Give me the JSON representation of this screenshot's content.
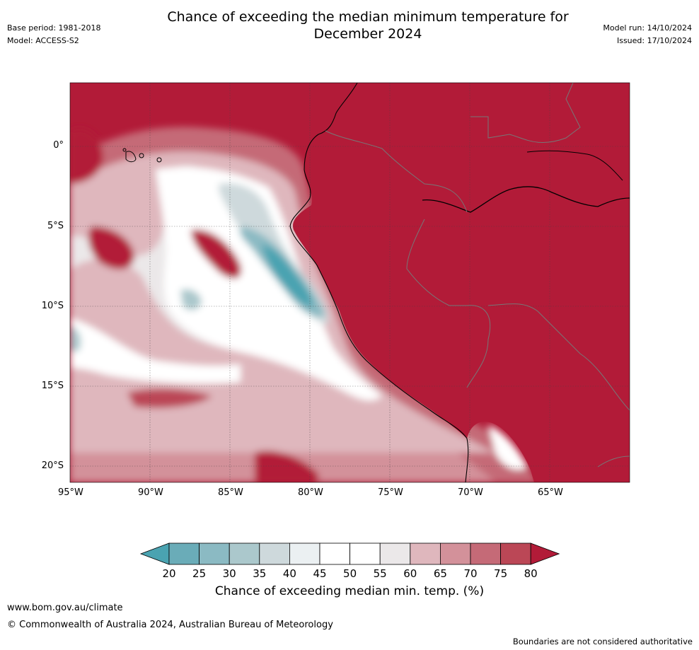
{
  "header": {
    "title_line1": "Chance of exceeding the median minimum temperature for",
    "title_line2": "December 2024",
    "base_period": "Base period: 1981-2018",
    "model": "Model: ACCESS-S2",
    "model_run": "Model run: 14/10/2024",
    "issued": "Issued: 17/10/2024"
  },
  "map": {
    "lon_ticks": [
      "95°W",
      "90°W",
      "85°W",
      "80°W",
      "75°W",
      "70°W",
      "65°W"
    ],
    "lat_ticks": [
      "0°",
      "5°S",
      "10°S",
      "15°S",
      "20°S"
    ]
  },
  "colorbar": {
    "label": "Chance of exceeding median min. temp. (%)",
    "ticks": [
      "20",
      "25",
      "30",
      "35",
      "40",
      "45",
      "50",
      "55",
      "60",
      "65",
      "70",
      "75",
      "80"
    ],
    "colors": [
      "#4aa3b1",
      "#6aacb8",
      "#8bbac3",
      "#abc8cc",
      "#ced9dc",
      "#ebf0f2",
      "#ffffff",
      "#ffffff",
      "#ebe8e9",
      "#dfb7bd",
      "#d3919a",
      "#c56a77",
      "#bb4756",
      "#b21b38"
    ]
  },
  "footer": {
    "website": "www.bom.gov.au/climate",
    "copyright": "© Commonwealth of Australia 2024, Australian Bureau of Meteorology",
    "disclaimer": "Boundaries are not considered authoritative"
  }
}
